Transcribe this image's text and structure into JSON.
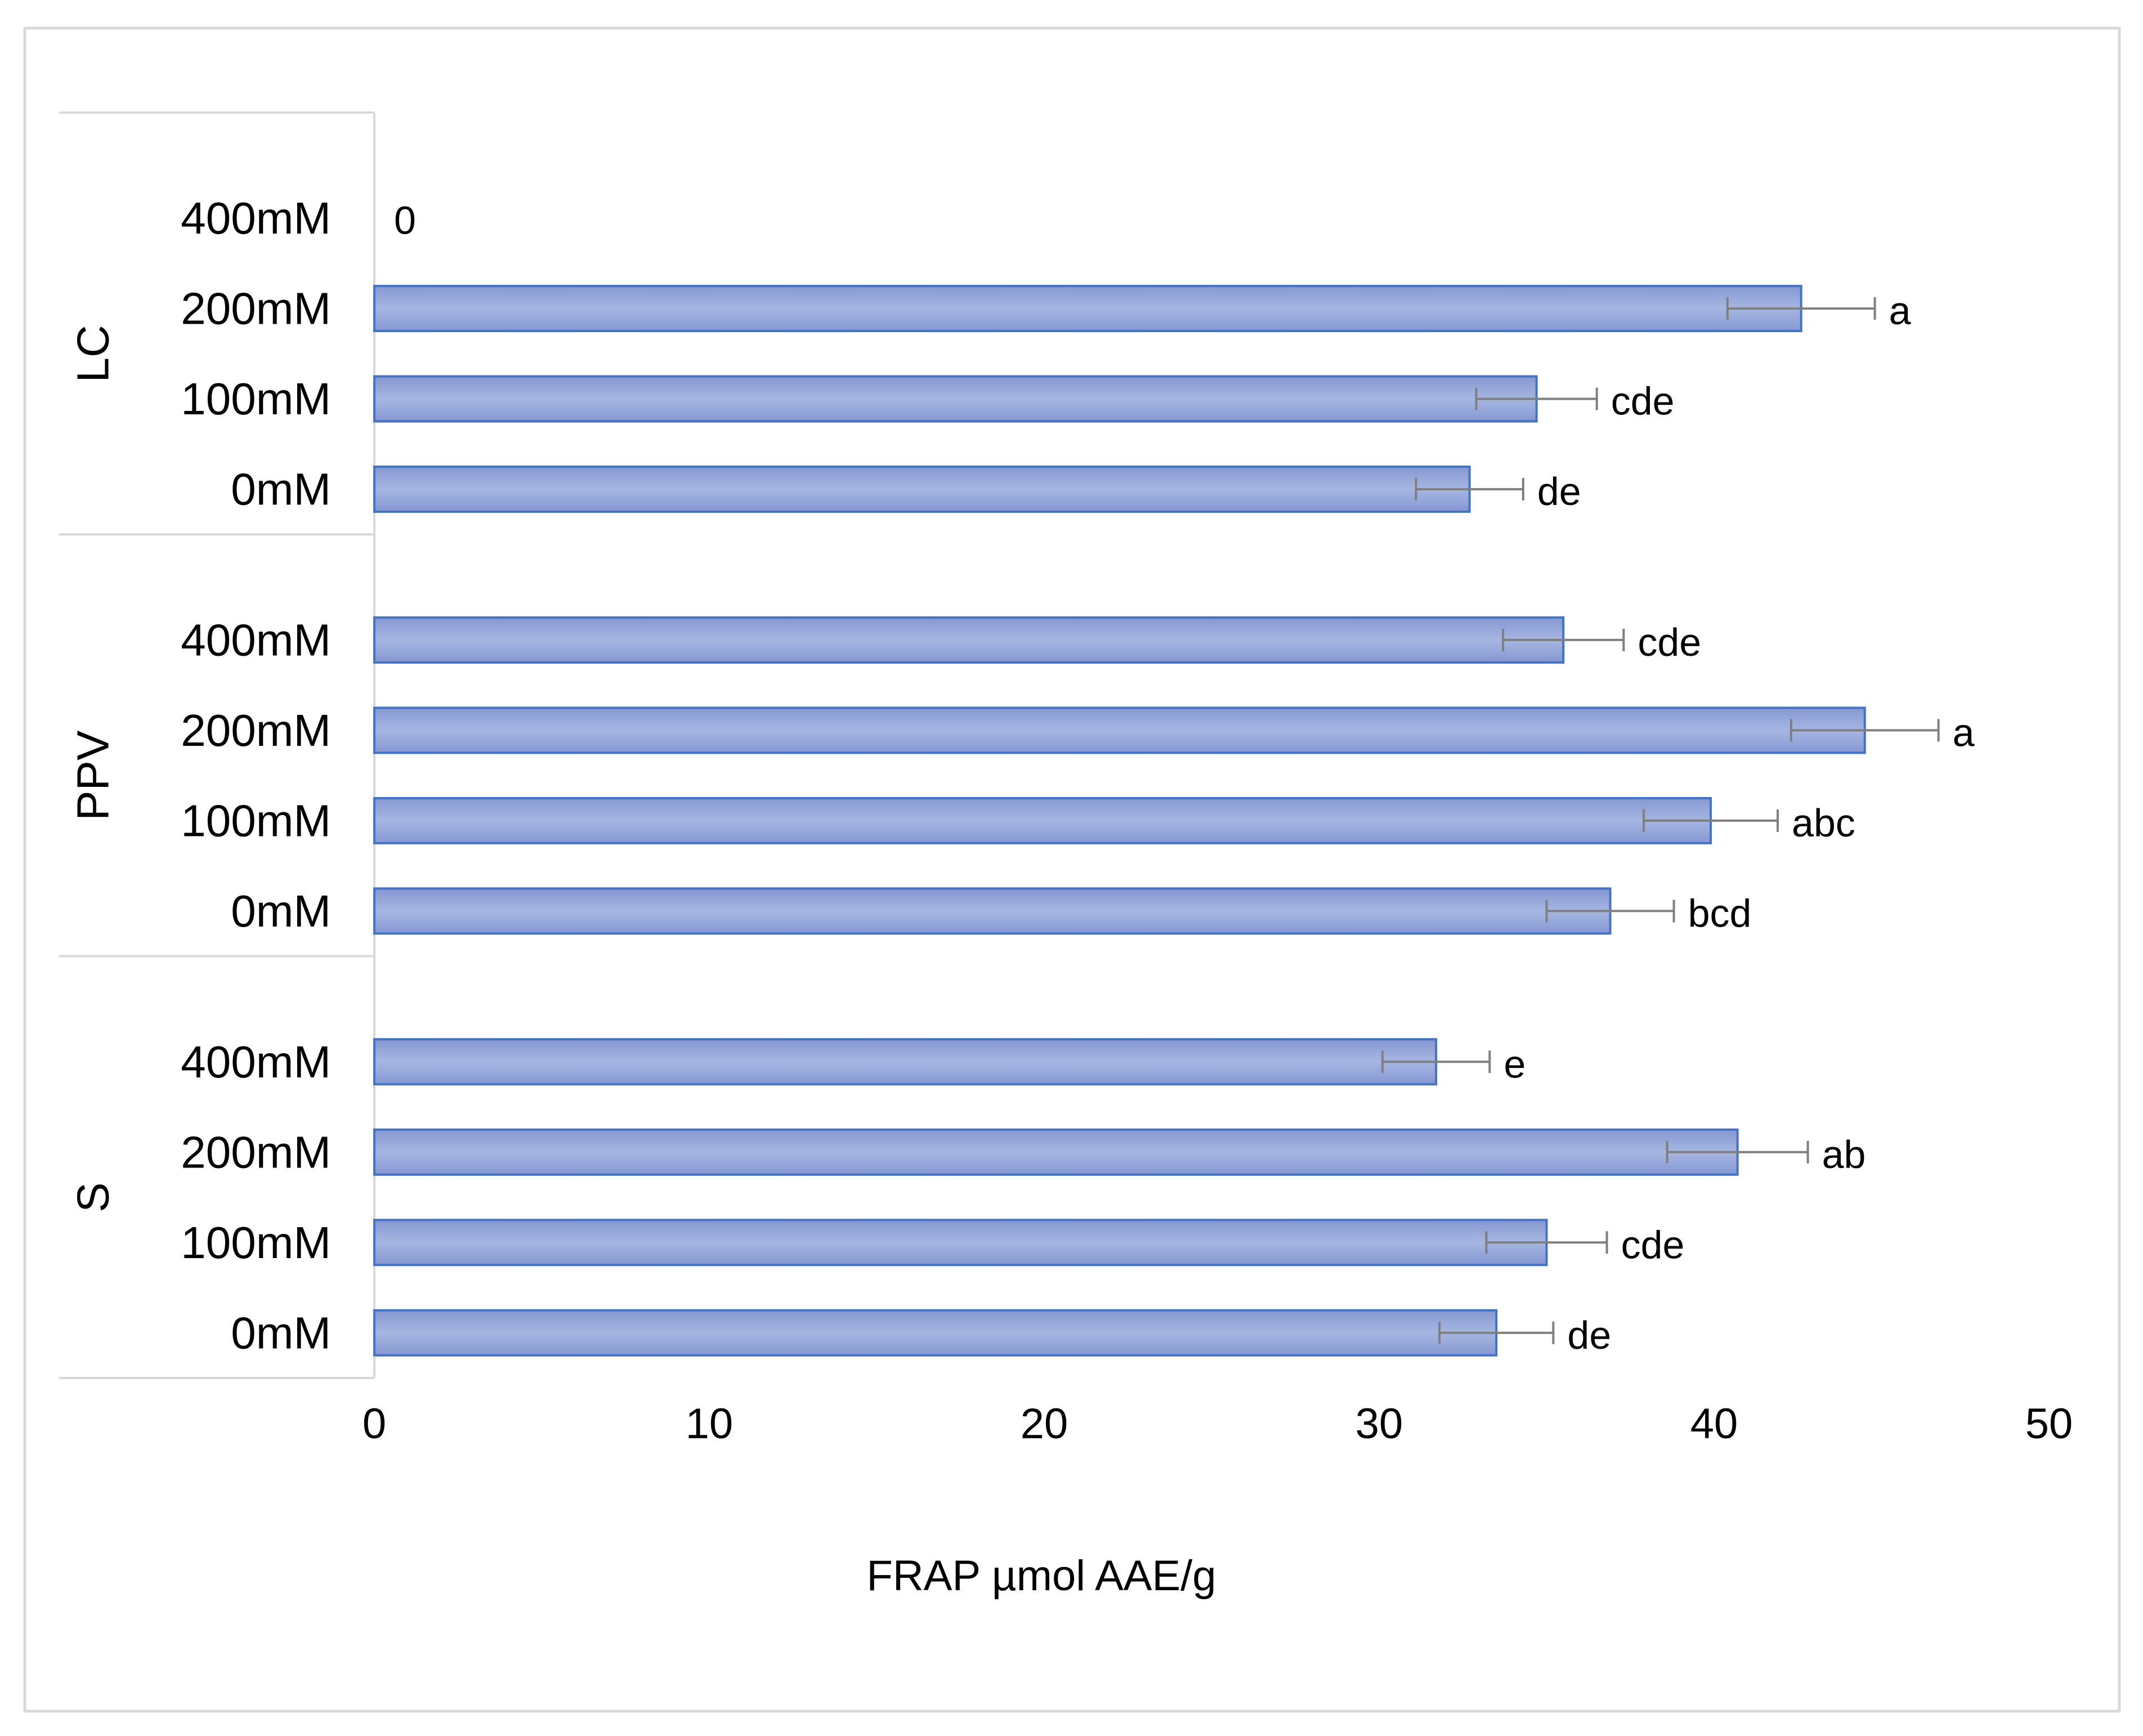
{
  "chart_data": {
    "type": "bar",
    "orientation": "horizontal",
    "title": "",
    "xlabel": "FRAP µmol AAE/g",
    "ylabel": "",
    "xlim": [
      0,
      50
    ],
    "x_ticks": [
      "0",
      "10",
      "20",
      "30",
      "40",
      "50"
    ],
    "grid": false,
    "legend": "none",
    "bar_color": "#8FA5DB",
    "bar_edge_color": "#4472C4",
    "error_bar_color": "#7F7F7F",
    "groups": [
      {
        "name": "LC",
        "bars": [
          {
            "category": "400mM",
            "value": 0,
            "error": 0,
            "label": "0"
          },
          {
            "category": "200mM",
            "value": 42.6,
            "error": 2.2,
            "label": "a"
          },
          {
            "category": "100mM",
            "value": 34.7,
            "error": 1.8,
            "label": "cde"
          },
          {
            "category": "0mM",
            "value": 32.7,
            "error": 1.6,
            "label": "de"
          }
        ]
      },
      {
        "name": "PPV",
        "bars": [
          {
            "category": "400mM",
            "value": 35.5,
            "error": 1.8,
            "label": "cde"
          },
          {
            "category": "200mM",
            "value": 44.5,
            "error": 2.2,
            "label": "a"
          },
          {
            "category": "100mM",
            "value": 39.9,
            "error": 2.0,
            "label": "abc"
          },
          {
            "category": "0mM",
            "value": 36.9,
            "error": 1.9,
            "label": "bcd"
          }
        ]
      },
      {
        "name": "S",
        "bars": [
          {
            "category": "400mM",
            "value": 31.7,
            "error": 1.6,
            "label": "e"
          },
          {
            "category": "200mM",
            "value": 40.7,
            "error": 2.1,
            "label": "ab"
          },
          {
            "category": "100mM",
            "value": 35.0,
            "error": 1.8,
            "label": "cde"
          },
          {
            "category": "0mM",
            "value": 33.5,
            "error": 1.7,
            "label": "de"
          }
        ]
      }
    ]
  }
}
